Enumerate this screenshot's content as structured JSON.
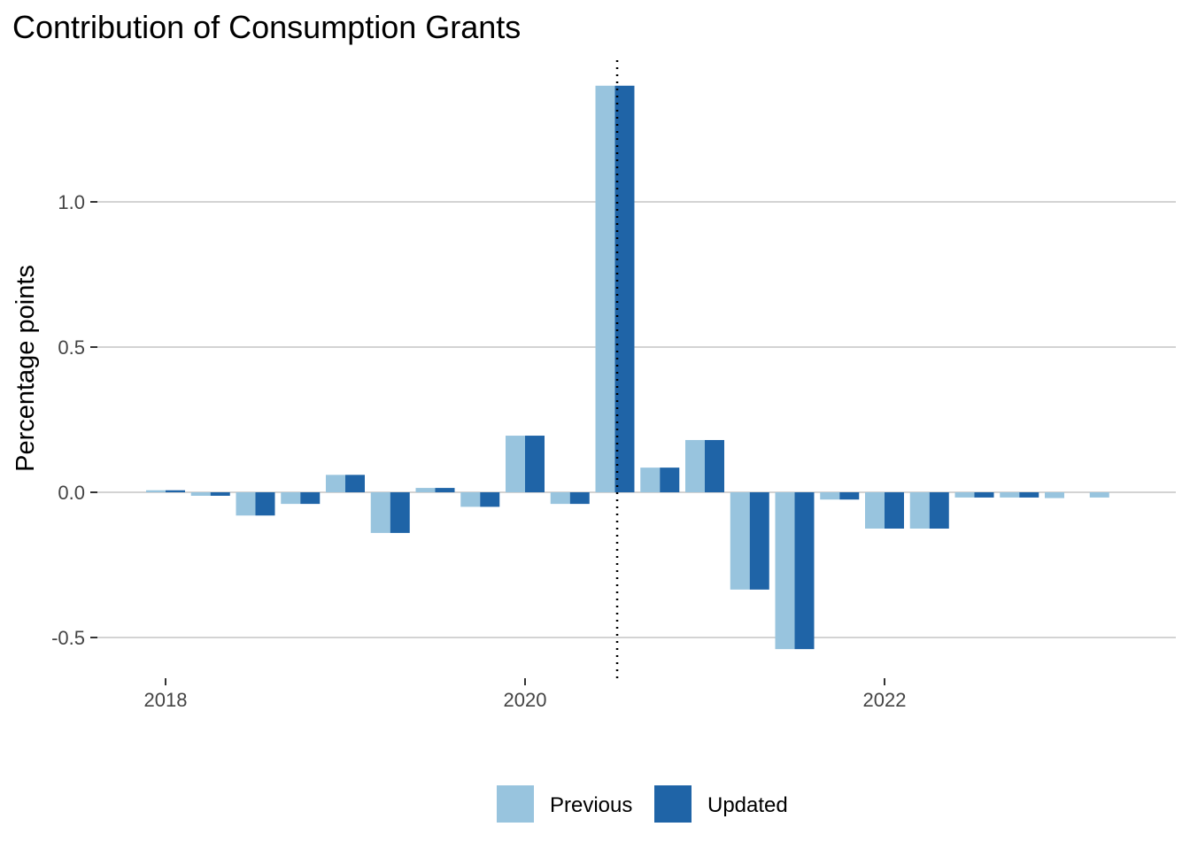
{
  "chart_data": {
    "type": "bar",
    "title": "Contribution of Consumption Grants",
    "xlabel": "",
    "ylabel": "Percentage points",
    "x_ticks": [
      "2018",
      "2020",
      "2022"
    ],
    "y_ticks": [
      "-0.5",
      "0.0",
      "0.5",
      "1.0"
    ],
    "ylim": [
      -0.6,
      1.45
    ],
    "grid": true,
    "legend_position": "bottom",
    "projection_divider_after_period": "2020-Q4",
    "periods": [
      "2018-Q1",
      "2018-Q2",
      "2018-Q3",
      "2018-Q4",
      "2019-Q1",
      "2019-Q2",
      "2019-Q3",
      "2019-Q4",
      "2020-Q1",
      "2020-Q2",
      "2020-Q3",
      "2020-Q4",
      "2021-Q1",
      "2021-Q2",
      "2021-Q3",
      "2021-Q4",
      "2022-Q1",
      "2022-Q2",
      "2022-Q3",
      "2022-Q4",
      "2023-Q1",
      "2023-Q2"
    ],
    "series": [
      {
        "name": "Previous",
        "color": "#98c4de",
        "values": [
          0.007,
          -0.012,
          -0.08,
          -0.04,
          0.06,
          -0.14,
          0.015,
          -0.05,
          0.195,
          -0.04,
          1.4,
          0.085,
          0.18,
          -0.335,
          -0.54,
          -0.025,
          -0.125,
          -0.125,
          -0.018,
          -0.018,
          -0.02,
          -0.018
        ]
      },
      {
        "name": "Updated",
        "color": "#1f64a7",
        "values": [
          0.007,
          -0.012,
          -0.08,
          -0.04,
          0.06,
          -0.14,
          0.015,
          -0.05,
          0.195,
          -0.04,
          1.4,
          0.085,
          0.18,
          -0.335,
          -0.54,
          -0.025,
          -0.125,
          -0.125,
          -0.018,
          -0.018,
          null,
          null
        ]
      }
    ]
  }
}
